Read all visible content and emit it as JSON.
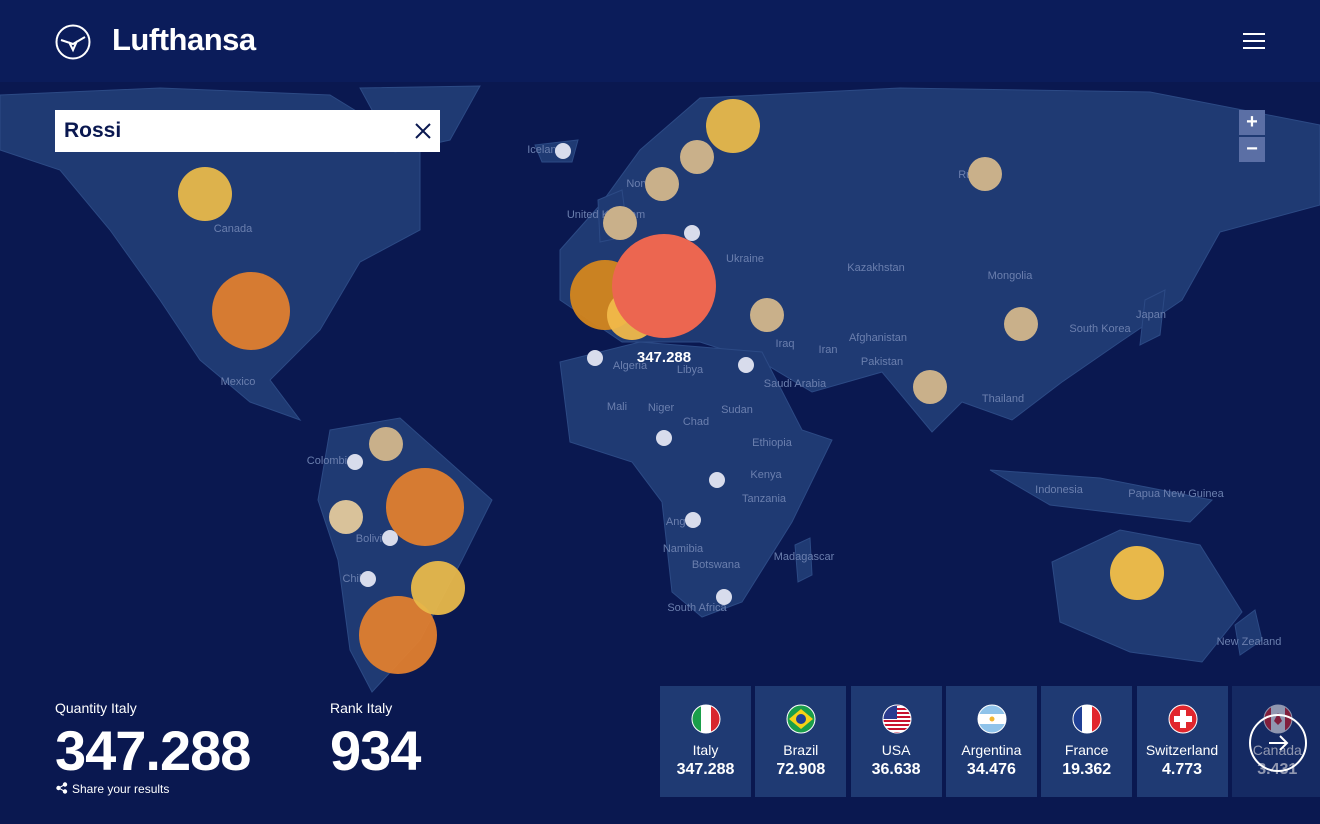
{
  "header": {
    "brand": "Lufthansa"
  },
  "search": {
    "value": "Rossi"
  },
  "zoom": {
    "in": "+",
    "out": "−"
  },
  "map": {
    "highlight_label": "347.288",
    "country_labels": [
      "Canada",
      "Mexico",
      "Colombia",
      "Bolivia",
      "Chile",
      "Iceland",
      "Norway",
      "United Kingdom",
      "Ukraine",
      "Kazakhstan",
      "Mongolia",
      "Russia",
      "South Korea",
      "Japan",
      "Afghanistan",
      "Pakistan",
      "Iran",
      "Iraq",
      "Saudi Arabia",
      "Algeria",
      "Libya",
      "Mali",
      "Niger",
      "Chad",
      "Sudan",
      "Ethiopia",
      "Kenya",
      "Tanzania",
      "Angola",
      "Namibia",
      "Botswana",
      "South Africa",
      "Madagascar",
      "Thailand",
      "Indonesia",
      "Papua New Guinea",
      "New Zealand"
    ]
  },
  "stats": {
    "quantity_label": "Quantity Italy",
    "quantity_value": "347.288",
    "rank_label": "Rank Italy",
    "rank_value": "934",
    "share": "Share your results"
  },
  "cards": [
    {
      "country": "Italy",
      "value": "347.288"
    },
    {
      "country": "Brazil",
      "value": "72.908"
    },
    {
      "country": "USA",
      "value": "36.638"
    },
    {
      "country": "Argentina",
      "value": "34.476"
    },
    {
      "country": "France",
      "value": "19.362"
    },
    {
      "country": "Switzerland",
      "value": "4.773"
    },
    {
      "country": "Canada",
      "value": "3.431"
    }
  ]
}
